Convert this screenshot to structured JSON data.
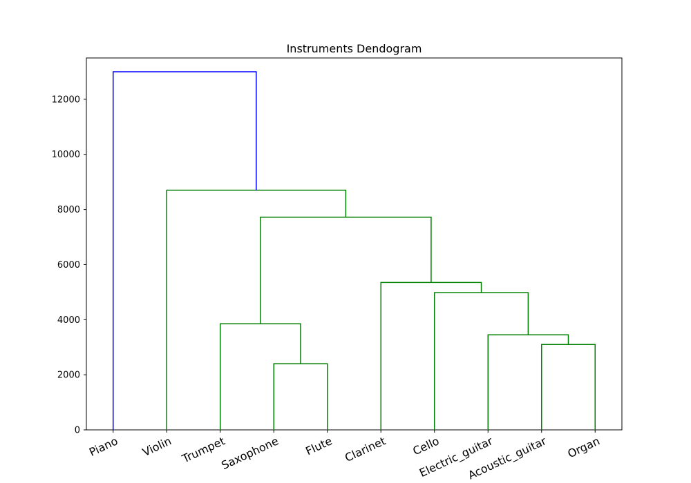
{
  "chart_data": {
    "type": "dendrogram",
    "title": "Instruments Dendogram",
    "xlabel": "",
    "ylabel": "",
    "ylim": [
      0,
      13500
    ],
    "yticks": [
      0,
      2000,
      4000,
      6000,
      8000,
      10000,
      12000
    ],
    "ytick_labels": [
      "0",
      "2000",
      "4000",
      "6000",
      "8000",
      "10000",
      "12000"
    ],
    "leaves": [
      "Piano",
      "Violin",
      "Trumpet",
      "Saxophone",
      "Flute",
      "Clarinet",
      "Cello",
      "Electric_guitar",
      "Acoustic_guitar",
      "Organ"
    ],
    "merges": [
      {
        "left": "Saxophone",
        "right": "Flute",
        "height": 2400
      },
      {
        "left": "Acoustic_guitar",
        "right": "Organ",
        "height": 3100
      },
      {
        "left": "Electric_guitar",
        "right": "Acoustic_guitar + Organ",
        "height": 3450
      },
      {
        "left": "Trumpet",
        "right": "Saxophone + Flute",
        "height": 3850
      },
      {
        "left": "Cello",
        "right": "Electric_guitar + Acoustic_guitar + Organ",
        "height": 4980
      },
      {
        "left": "Clarinet",
        "right": "Cello + Electric_guitar + Acoustic_guitar + Organ",
        "height": 5350
      },
      {
        "left": "Trumpet + Saxophone + Flute",
        "right": "Clarinet + Cello + Electric_guitar + Acoustic_guitar + Organ",
        "height": 7720
      },
      {
        "left": "Violin",
        "right": "Trumpet + Saxophone + Flute + Clarinet + Cello + Electric_guitar + Acoustic_guitar + Organ",
        "height": 8700
      },
      {
        "left": "Piano",
        "right": "all other instruments",
        "height": 13000
      }
    ],
    "colors": {
      "root_link": "#0000ff",
      "cluster_links": "#008000",
      "axes": "#000000"
    },
    "grid": false,
    "legend": "none"
  }
}
